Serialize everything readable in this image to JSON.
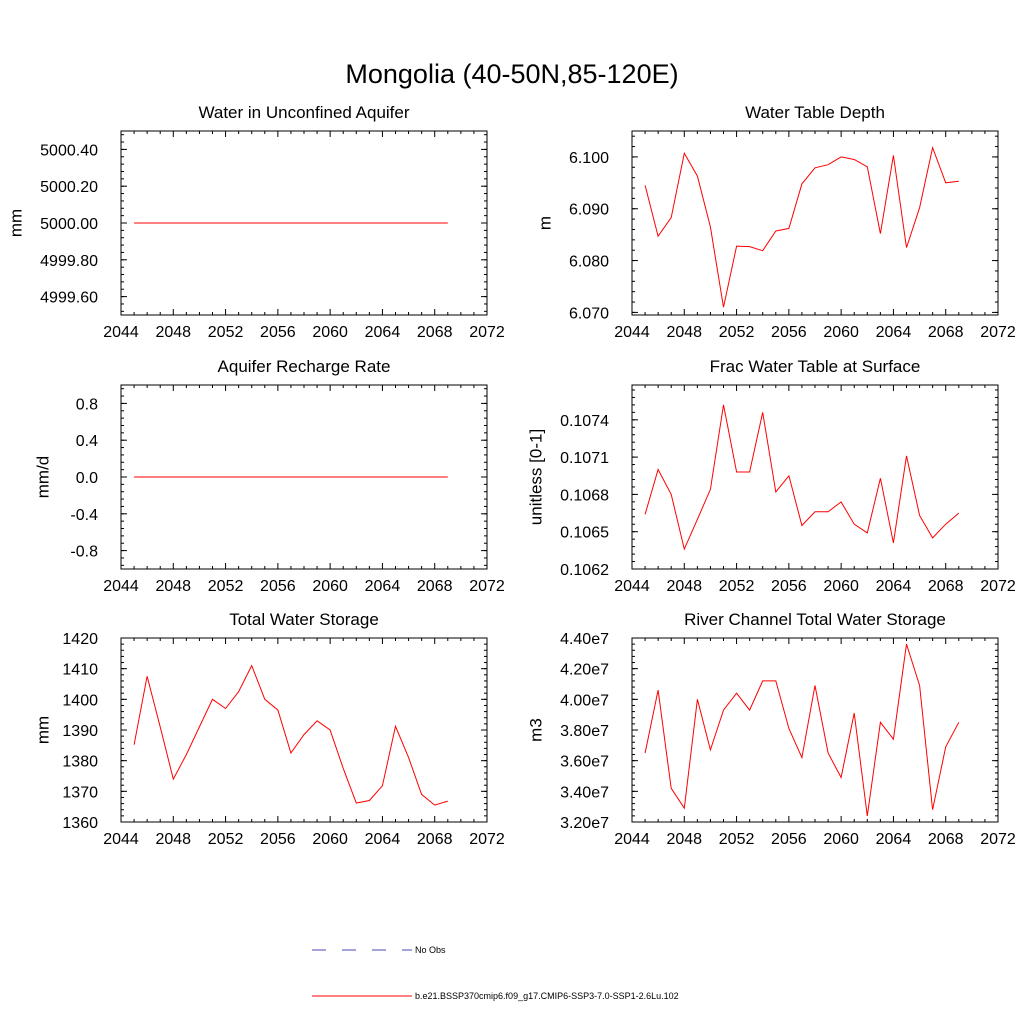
{
  "title": "Mongolia (40-50N,85-120E)",
  "colors": {
    "model": "#ff0000",
    "obs": "#4a4ab4",
    "axis": "#000000"
  },
  "legend": [
    {
      "label": "No Obs",
      "style": "dashed",
      "color": "#4a4ab4"
    },
    {
      "label": "b.e21.BSSP370cmip6.f09_g17.CMIP6-SSP3-7.0-SSP1-2.6Lu.102",
      "style": "solid",
      "color": "#ff0000"
    }
  ],
  "chart_data": [
    {
      "type": "line",
      "title": "Water in Unconfined Aquifer",
      "ylabel": "mm",
      "xlim": [
        2044,
        2072
      ],
      "ylim": [
        4999.5,
        5000.5
      ],
      "xticks": [
        "2044",
        "2048",
        "2052",
        "2056",
        "2060",
        "2064",
        "2068",
        "2072"
      ],
      "yticks": [
        4999.6,
        4999.8,
        5000.0,
        5000.2,
        5000.4
      ],
      "ytick_labels": [
        "4999.60",
        "4999.80",
        "5000.00",
        "5000.20",
        "5000.40"
      ],
      "x": [
        2045,
        2046,
        2047,
        2048,
        2049,
        2050,
        2051,
        2052,
        2053,
        2054,
        2055,
        2056,
        2057,
        2058,
        2059,
        2060,
        2061,
        2062,
        2063,
        2064,
        2065,
        2066,
        2067,
        2068,
        2069
      ],
      "series": [
        {
          "values": [
            5000,
            5000,
            5000,
            5000,
            5000,
            5000,
            5000,
            5000,
            5000,
            5000,
            5000,
            5000,
            5000,
            5000,
            5000,
            5000,
            5000,
            5000,
            5000,
            5000,
            5000,
            5000,
            5000,
            5000,
            5000
          ]
        }
      ]
    },
    {
      "type": "line",
      "title": "Water Table Depth",
      "ylabel": "m",
      "xlim": [
        2044,
        2072
      ],
      "ylim": [
        6.0695,
        6.105
      ],
      "xticks": [
        "2044",
        "2048",
        "2052",
        "2056",
        "2060",
        "2064",
        "2068",
        "2072"
      ],
      "yticks": [
        6.07,
        6.08,
        6.09,
        6.1
      ],
      "ytick_labels": [
        "6.070",
        "6.080",
        "6.090",
        "6.100"
      ],
      "x": [
        2045,
        2046,
        2047,
        2048,
        2049,
        2050,
        2051,
        2052,
        2053,
        2054,
        2055,
        2056,
        2057,
        2058,
        2059,
        2060,
        2061,
        2062,
        2063,
        2064,
        2065,
        2066,
        2067,
        2068,
        2069
      ],
      "series": [
        {
          "values": [
            6.0945,
            6.0847,
            6.0883,
            6.1007,
            6.0963,
            6.0865,
            6.071,
            6.0828,
            6.0827,
            6.0819,
            6.0857,
            6.0862,
            6.0948,
            6.0979,
            6.0985,
            6.1,
            6.0995,
            6.0981,
            6.0852,
            6.1003,
            6.0825,
            6.0902,
            6.1018,
            6.095,
            6.0953
          ]
        }
      ]
    },
    {
      "type": "line",
      "title": "Aquifer Recharge Rate",
      "ylabel": "mm/d",
      "xlim": [
        2044,
        2072
      ],
      "ylim": [
        -1.0,
        1.0
      ],
      "xticks": [
        "2044",
        "2048",
        "2052",
        "2056",
        "2060",
        "2064",
        "2068",
        "2072"
      ],
      "yticks": [
        -0.8,
        -0.4,
        0.0,
        0.4,
        0.8
      ],
      "ytick_labels": [
        "-0.8",
        "-0.4",
        "0.0",
        "0.4",
        "0.8"
      ],
      "x": [
        2045,
        2046,
        2047,
        2048,
        2049,
        2050,
        2051,
        2052,
        2053,
        2054,
        2055,
        2056,
        2057,
        2058,
        2059,
        2060,
        2061,
        2062,
        2063,
        2064,
        2065,
        2066,
        2067,
        2068,
        2069
      ],
      "series": [
        {
          "values": [
            0,
            0,
            0,
            0,
            0,
            0,
            0,
            0,
            0,
            0,
            0,
            0,
            0,
            0,
            0,
            0,
            0,
            0,
            0,
            0,
            0,
            0,
            0,
            0,
            0
          ]
        }
      ]
    },
    {
      "type": "line",
      "title": "Frac Water Table at Surface",
      "ylabel": "unitless [0-1]",
      "xlim": [
        2044,
        2072
      ],
      "ylim": [
        0.1062,
        0.10768
      ],
      "xticks": [
        "2044",
        "2048",
        "2052",
        "2056",
        "2060",
        "2064",
        "2068",
        "2072"
      ],
      "yticks": [
        0.1062,
        0.1065,
        0.1068,
        0.1071,
        0.1074
      ],
      "ytick_labels": [
        "0.1062",
        "0.1065",
        "0.1068",
        "0.1071",
        "0.1074"
      ],
      "x": [
        2045,
        2046,
        2047,
        2048,
        2049,
        2050,
        2051,
        2052,
        2053,
        2054,
        2055,
        2056,
        2057,
        2058,
        2059,
        2060,
        2061,
        2062,
        2063,
        2064,
        2065,
        2066,
        2067,
        2068,
        2069
      ],
      "series": [
        {
          "values": [
            0.10664,
            0.107,
            0.1068,
            0.10636,
            0.1066,
            0.10684,
            0.10752,
            0.10698,
            0.10698,
            0.10746,
            0.10682,
            0.10695,
            0.10655,
            0.10666,
            0.10666,
            0.10674,
            0.10656,
            0.10649,
            0.10693,
            0.10641,
            0.10711,
            0.10663,
            0.10645,
            0.10656,
            0.10665
          ]
        }
      ]
    },
    {
      "type": "line",
      "title": "Total Water Storage",
      "ylabel": "mm",
      "xlim": [
        2044,
        2072
      ],
      "ylim": [
        1360,
        1420
      ],
      "xticks": [
        "2044",
        "2048",
        "2052",
        "2056",
        "2060",
        "2064",
        "2068",
        "2072"
      ],
      "yticks": [
        1360,
        1370,
        1380,
        1390,
        1400,
        1410,
        1420
      ],
      "ytick_labels": [
        "1360",
        "1370",
        "1380",
        "1390",
        "1400",
        "1410",
        "1420"
      ],
      "x": [
        2045,
        2046,
        2047,
        2048,
        2049,
        2050,
        2051,
        2052,
        2053,
        2054,
        2055,
        2056,
        2057,
        2058,
        2059,
        2060,
        2061,
        2062,
        2063,
        2064,
        2065,
        2066,
        2067,
        2068,
        2069
      ],
      "series": [
        {
          "values": [
            1385.2,
            1407.5,
            1391.0,
            1374.0,
            1382.0,
            1391.0,
            1400.0,
            1397.0,
            1402.5,
            1411.0,
            1400.0,
            1396.5,
            1382.5,
            1388.5,
            1393.0,
            1390.0,
            1377.5,
            1366.2,
            1367.0,
            1371.8,
            1391.2,
            1381.0,
            1369.0,
            1365.5,
            1366.8
          ]
        }
      ]
    },
    {
      "type": "line",
      "title": "River Channel Total Water Storage",
      "ylabel": "m3",
      "xlim": [
        2044,
        2072
      ],
      "ylim": [
        32000000,
        44000000
      ],
      "xticks": [
        "2044",
        "2048",
        "2052",
        "2056",
        "2060",
        "2064",
        "2068",
        "2072"
      ],
      "yticks": [
        32000000,
        34000000,
        36000000,
        38000000,
        40000000,
        42000000,
        44000000
      ],
      "ytick_labels": [
        "3.20e7",
        "3.40e7",
        "3.60e7",
        "3.80e7",
        "4.00e7",
        "4.20e7",
        "4.40e7"
      ],
      "x": [
        2045,
        2046,
        2047,
        2048,
        2049,
        2050,
        2051,
        2052,
        2053,
        2054,
        2055,
        2056,
        2057,
        2058,
        2059,
        2060,
        2061,
        2062,
        2063,
        2064,
        2065,
        2066,
        2067,
        2068,
        2069
      ],
      "series": [
        {
          "values": [
            36500000,
            40600000,
            34200000,
            32900000,
            40000000,
            36700000,
            39300000,
            40400000,
            39300000,
            41200000,
            41200000,
            38100000,
            36200000,
            40900000,
            36500000,
            34900000,
            39100000,
            32400000,
            38500000,
            37400000,
            43600000,
            40900000,
            32800000,
            36900000,
            38500000
          ]
        }
      ]
    }
  ]
}
